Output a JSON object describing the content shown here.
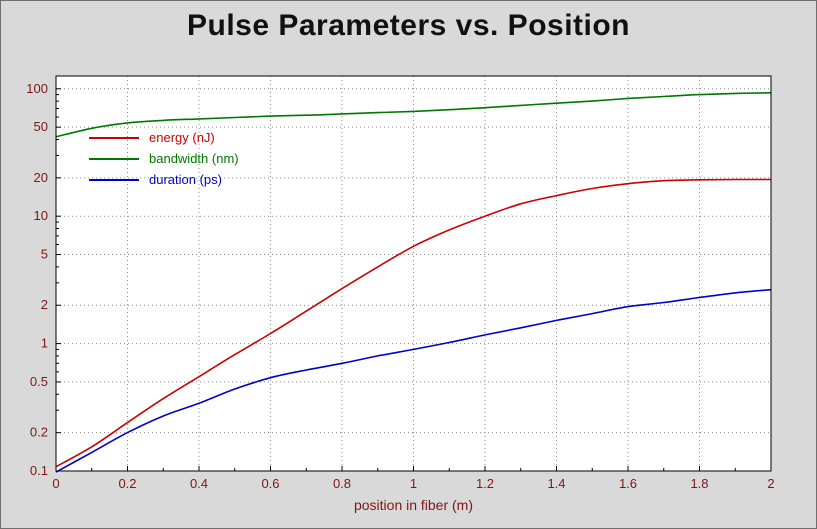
{
  "window": {
    "background": "#d9d9d9"
  },
  "chart_data": {
    "type": "line",
    "title": "Pulse Parameters vs. Position",
    "xlabel": "position in fiber (m)",
    "ylabel": "",
    "x_range": [
      0,
      2
    ],
    "y_scale": "log",
    "y_range": [
      0.1,
      126
    ],
    "xticks": [
      0,
      0.2,
      0.4,
      0.6,
      0.8,
      1,
      1.2,
      1.4,
      1.6,
      1.8,
      2
    ],
    "xticks_minor": [
      0.1,
      0.3,
      0.5,
      0.7,
      0.9,
      1.1,
      1.3,
      1.5,
      1.7,
      1.9
    ],
    "yticks": [
      0.1,
      0.2,
      0.5,
      1,
      2,
      5,
      10,
      20,
      50,
      100
    ],
    "yticks_minor": [
      0.3,
      0.4,
      0.6,
      0.7,
      0.8,
      0.9,
      3,
      4,
      6,
      7,
      8,
      9,
      30,
      40,
      60,
      70,
      80,
      90
    ],
    "grid": true,
    "legend_position": "upper-left",
    "x": [
      0,
      0.1,
      0.2,
      0.3,
      0.4,
      0.5,
      0.6,
      0.7,
      0.8,
      0.9,
      1.0,
      1.1,
      1.2,
      1.3,
      1.4,
      1.5,
      1.6,
      1.7,
      1.8,
      1.9,
      2.0
    ],
    "series": [
      {
        "name": "energy (nJ)",
        "color": "#cc0000",
        "values": [
          0.108,
          0.155,
          0.24,
          0.37,
          0.55,
          0.82,
          1.2,
          1.8,
          2.7,
          4.0,
          5.8,
          7.8,
          10,
          12.5,
          14.5,
          16.5,
          18,
          19,
          19.3,
          19.4,
          19.4
        ]
      },
      {
        "name": "bandwidth (nm)",
        "color": "#007700",
        "values": [
          42,
          49,
          54,
          56.5,
          58,
          59.5,
          61,
          62,
          63.5,
          65,
          66.5,
          68.5,
          71,
          74,
          77,
          80,
          84,
          87,
          90,
          92,
          93
        ]
      },
      {
        "name": "duration (ps)",
        "color": "#0000cc",
        "values": [
          0.098,
          0.14,
          0.2,
          0.27,
          0.34,
          0.44,
          0.54,
          0.62,
          0.7,
          0.8,
          0.9,
          1.02,
          1.17,
          1.33,
          1.52,
          1.72,
          1.95,
          2.1,
          2.3,
          2.5,
          2.65
        ]
      }
    ],
    "colors": {
      "plot_background": "#ffffff",
      "grid": "#8a8a8a",
      "axis": "#000000",
      "tick_label": "#801515"
    }
  }
}
